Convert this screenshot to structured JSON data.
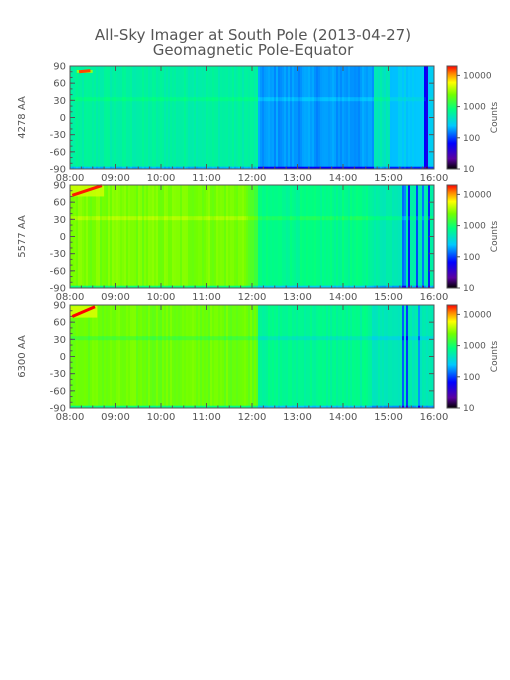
{
  "chart_data": {
    "type": "heatmap",
    "title": "All-Sky Imager at South Pole (2013-04-27)",
    "subtitle": "Geomagnetic Pole-Equator",
    "x_tick_labels": [
      "08:00",
      "09:00",
      "10:00",
      "11:00",
      "12:00",
      "13:00",
      "14:00",
      "15:00",
      "16:00"
    ],
    "x_range_hours": [
      8,
      16
    ],
    "y_ticks": [
      90,
      60,
      30,
      0,
      -30,
      -60,
      -90
    ],
    "y_range": [
      -90,
      90
    ],
    "colorbar": {
      "label": "Counts",
      "scale": "log",
      "range": [
        10,
        20000
      ],
      "tick_labels": [
        "10",
        "100",
        "1000",
        "10000"
      ],
      "tick_values": [
        10,
        100,
        1000,
        10000
      ]
    },
    "panels": [
      {
        "ylabel": "4278 AA",
        "segments": [
          {
            "start": 8.0,
            "end": 12.1,
            "base_counts": 600
          },
          {
            "start": 12.1,
            "end": 14.65,
            "base_counts": 180
          },
          {
            "start": 14.65,
            "end": 15.0,
            "base_counts": 500
          },
          {
            "start": 15.0,
            "end": 16.0,
            "base_counts": 260
          }
        ],
        "horizontal_band": {
          "lat": 32,
          "factor": 1.25
        },
        "hotspot": {
          "start": 8.15,
          "end": 8.5,
          "lat_start": 78,
          "lat_end": 83,
          "counts": 15000
        }
      },
      {
        "ylabel": "5577 AA",
        "segments": [
          {
            "start": 8.0,
            "end": 11.9,
            "base_counts": 2500
          },
          {
            "start": 11.9,
            "end": 12.1,
            "base_counts": 1600
          },
          {
            "start": 12.1,
            "end": 14.6,
            "base_counts": 750
          },
          {
            "start": 14.6,
            "end": 16.0,
            "base_counts": 550
          }
        ],
        "horizontal_band": {
          "lat": 32,
          "factor": 1.35
        },
        "hotspot": {
          "start": 8.0,
          "end": 8.75,
          "lat_start": 70,
          "lat_end": 90,
          "counts": 18000
        }
      },
      {
        "ylabel": "6300 AA",
        "segments": [
          {
            "start": 8.0,
            "end": 12.1,
            "base_counts": 2300
          },
          {
            "start": 12.1,
            "end": 14.6,
            "base_counts": 700
          },
          {
            "start": 14.6,
            "end": 16.0,
            "base_counts": 500
          }
        ],
        "horizontal_band": {
          "lat": 32,
          "factor": 0.7
        },
        "hotspot": {
          "start": 8.0,
          "end": 8.6,
          "lat_start": 68,
          "lat_end": 88,
          "counts": 20000
        }
      }
    ]
  }
}
